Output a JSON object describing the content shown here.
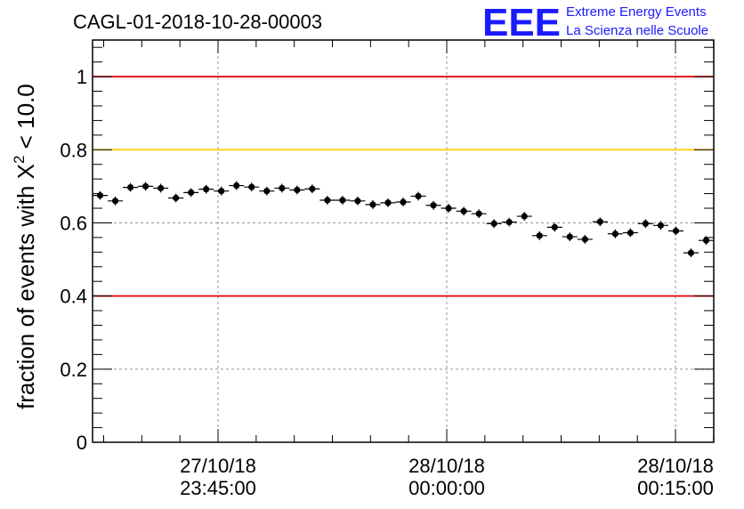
{
  "chart_data": {
    "type": "scatter",
    "title": "CAGL-01-2018-10-28-00003",
    "ylabel": "fraction of events with X",
    "ylabel_sup": "2",
    "ylabel_tail": " < 10.0",
    "ylim": [
      0,
      1.1
    ],
    "yticks": [
      0,
      0.2,
      0.4,
      0.6,
      0.8,
      1
    ],
    "ytick_labels": [
      "0",
      "0.2",
      "0.4",
      "0.6",
      "0.8",
      "1"
    ],
    "xticks": [
      {
        "date": "27/10/18",
        "time": "23:45:00",
        "minutes": 0
      },
      {
        "date": "28/10/18",
        "time": "00:00:00",
        "minutes": 15
      },
      {
        "date": "28/10/18",
        "time": "00:15:00",
        "minutes": 30
      }
    ],
    "reference_lines": [
      {
        "y": 1.0,
        "color": "#e00000"
      },
      {
        "y": 0.8,
        "color": "#ffcc00"
      },
      {
        "y": 0.4,
        "color": "#e00000"
      }
    ],
    "grid": true,
    "series": [
      {
        "y": [
          0.675,
          0.66,
          0.697,
          0.7,
          0.695,
          0.668,
          0.683,
          0.692,
          0.687,
          0.702,
          0.698,
          0.687,
          0.695,
          0.69,
          0.693,
          0.662,
          0.662,
          0.66,
          0.65,
          0.655,
          0.657,
          0.673,
          0.648,
          0.64,
          0.632,
          0.625,
          0.598,
          0.602,
          0.618,
          0.565,
          0.588,
          0.562,
          0.555,
          0.603,
          0.57,
          0.573,
          0.598,
          0.593,
          0.578,
          0.518,
          0.552
        ],
        "yerr": 0.012
      }
    ]
  },
  "logo": {
    "mark": "EEE",
    "line1": "Extreme Energy Events",
    "line2": "La Scienza nelle Scuole"
  }
}
